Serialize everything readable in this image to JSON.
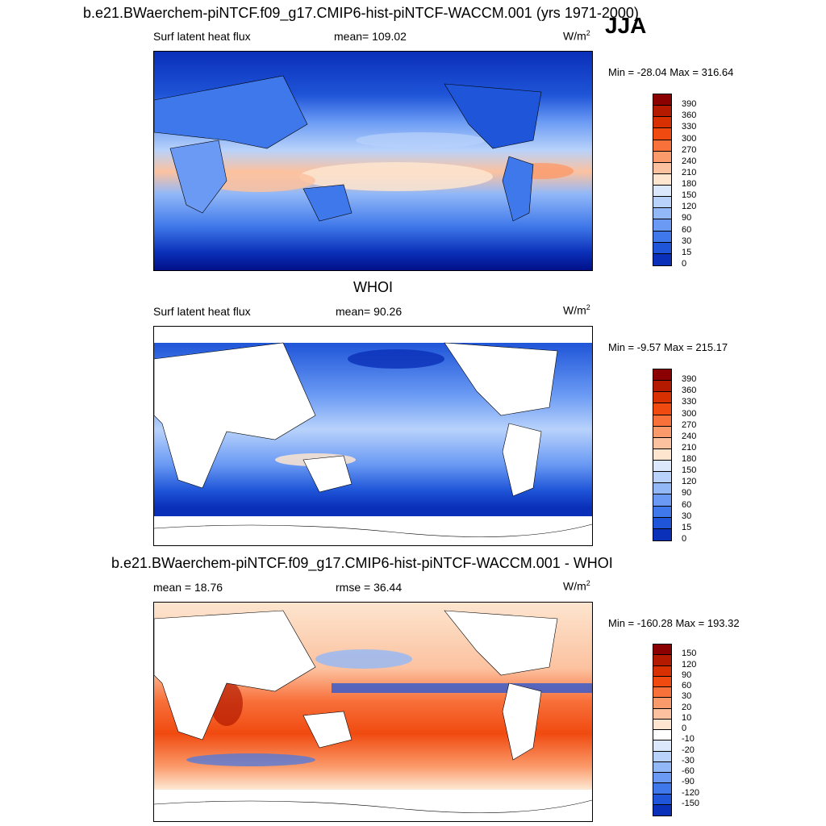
{
  "header": {
    "title": "b.e21.BWaerchem-piNTCF.f09_g17.CMIP6-hist-piNTCF-WACCM.001 (yrs 1971-2000)",
    "season": "JJA"
  },
  "panels": [
    {
      "id": "model",
      "variable": "Surf latent heat flux",
      "stat": "mean= 109.02",
      "units_base": "W/m",
      "units_sup": "2",
      "minmax": "Min = -28.04 Max = 316.64",
      "colorbar_labels": [
        "390",
        "360",
        "330",
        "300",
        "270",
        "240",
        "210",
        "180",
        "150",
        "120",
        "90",
        "60",
        "30",
        "15",
        "0"
      ]
    },
    {
      "id": "obs",
      "title": "WHOI",
      "variable": "Surf latent heat flux",
      "stat": "mean=  90.26",
      "units_base": "W/m",
      "units_sup": "2",
      "minmax": "Min =  -9.57 Max = 215.17",
      "colorbar_labels": [
        "390",
        "360",
        "330",
        "300",
        "270",
        "240",
        "210",
        "180",
        "150",
        "120",
        "90",
        "60",
        "30",
        "15",
        "0"
      ]
    },
    {
      "id": "diff",
      "title": "b.e21.BWaerchem-piNTCF.f09_g17.CMIP6-hist-piNTCF-WACCM.001 - WHOI",
      "stat": "mean =  18.76",
      "stat2": "rmse =  36.44",
      "units_base": "W/m",
      "units_sup": "2",
      "minmax": "Min = -160.28 Max = 193.32",
      "colorbar_labels": [
        "150",
        "120",
        "90",
        "60",
        "30",
        "20",
        "10",
        "0",
        "-10",
        "-20",
        "-30",
        "-60",
        "-90",
        "-120",
        "-150"
      ]
    }
  ],
  "colors": {
    "abs_scale": [
      "#8b0000",
      "#b31a00",
      "#d83000",
      "#f04a10",
      "#f8703a",
      "#fb9a6a",
      "#fcc2a0",
      "#fde5cf",
      "#dbe8fb",
      "#b8d2fb",
      "#92b8f8",
      "#6a9af4",
      "#3f78ea",
      "#1f55d8",
      "#0a2fb8",
      "#011089"
    ],
    "diff_scale": [
      "#8b0000",
      "#b31a00",
      "#d83000",
      "#f04a10",
      "#f8703a",
      "#fb9a6a",
      "#fcc2a0",
      "#fde5cf",
      "#ffffff",
      "#dbe8fb",
      "#b8d2fb",
      "#92b8f8",
      "#6a9af4",
      "#3f78ea",
      "#1f55d8",
      "#0a2fb8",
      "#011089"
    ]
  }
}
